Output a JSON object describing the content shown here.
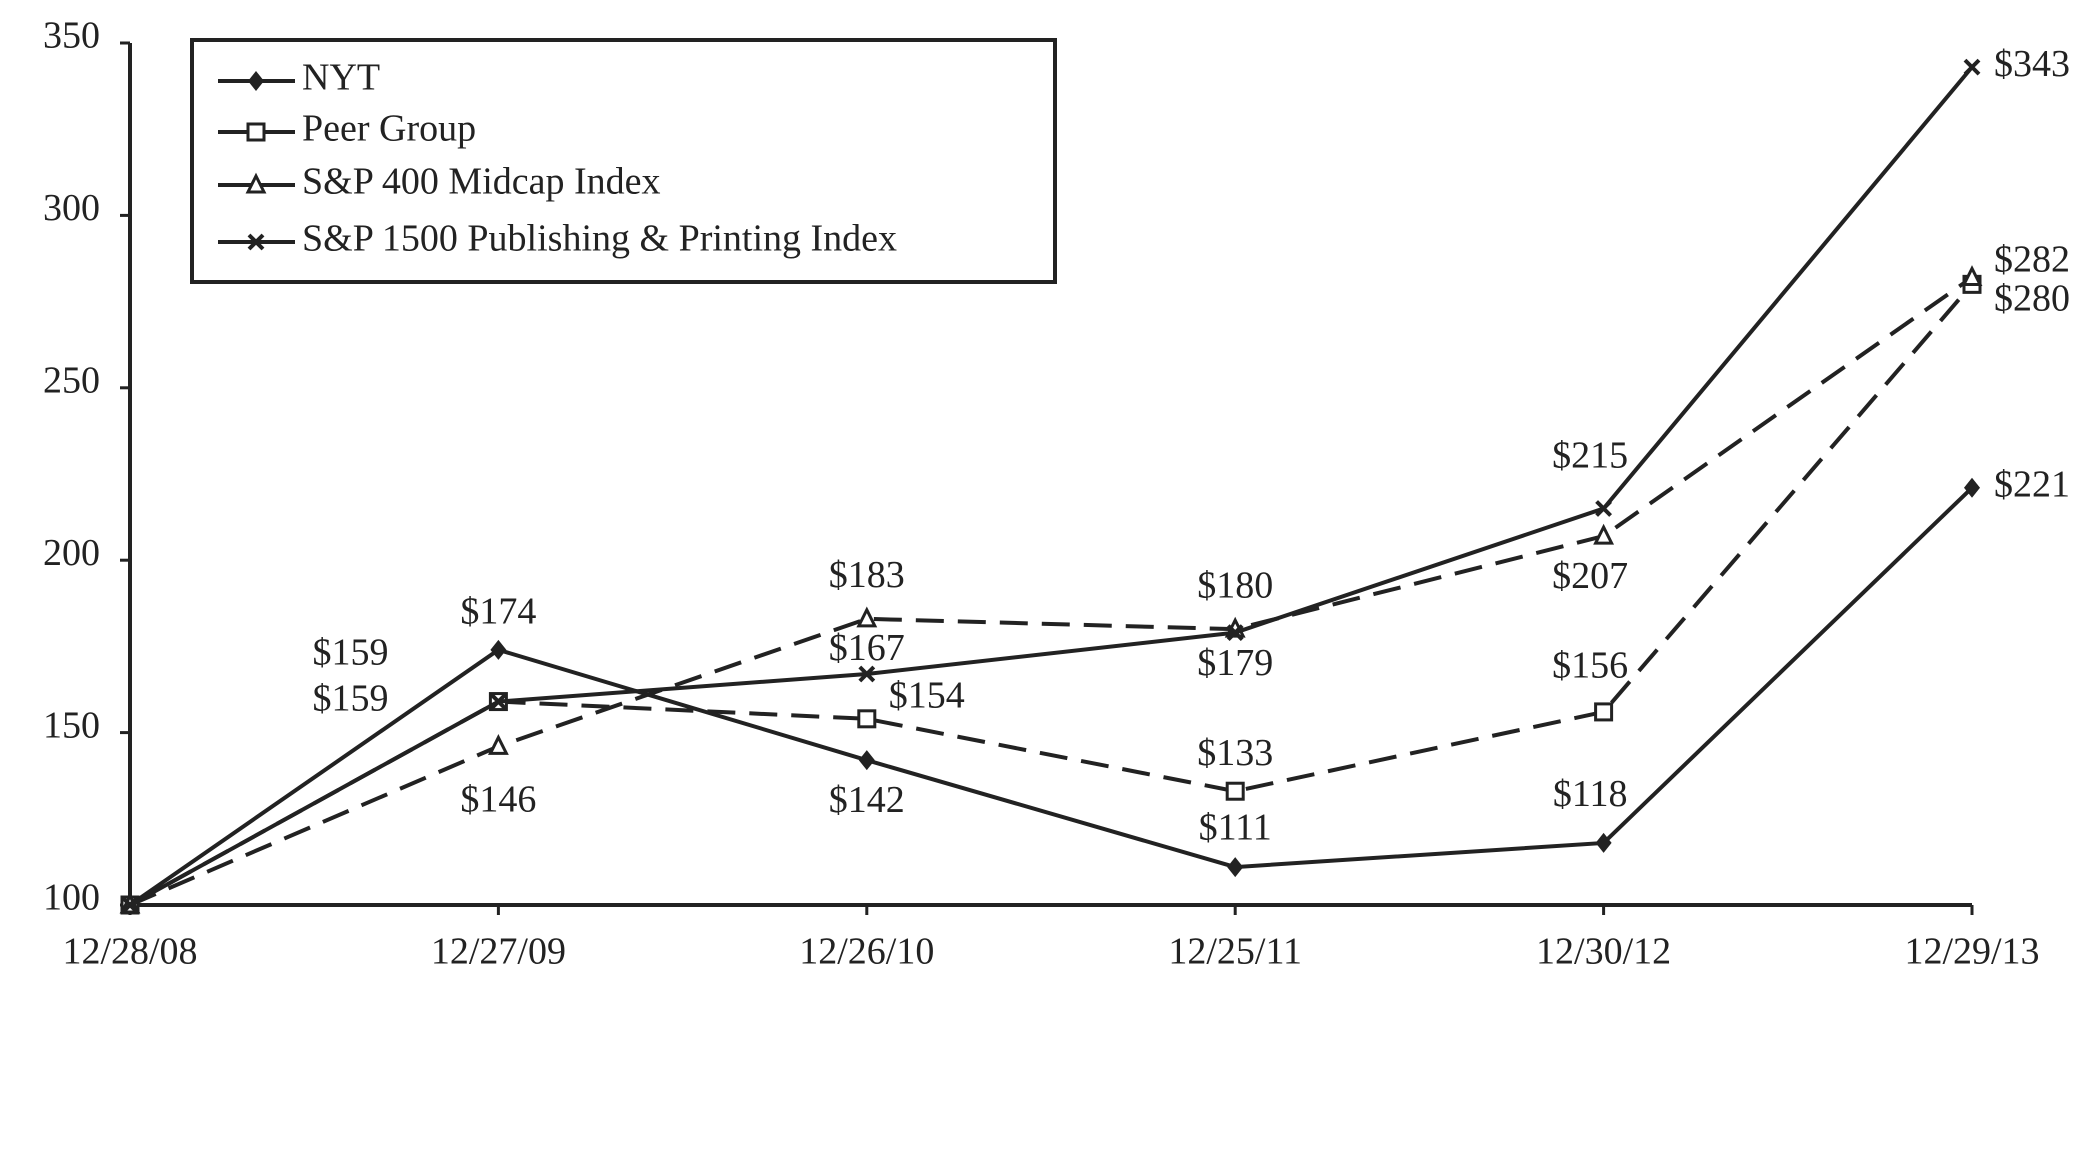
{
  "chart_data": {
    "type": "line",
    "categories": [
      "12/28/08",
      "12/27/09",
      "12/26/10",
      "12/25/11",
      "12/30/12",
      "12/29/13"
    ],
    "ylim": [
      100,
      350
    ],
    "yticks": [
      100,
      150,
      200,
      250,
      300,
      350
    ],
    "legend": "top-left",
    "series": [
      {
        "name": "NYT",
        "color": "#222222",
        "marker": "diamond",
        "line_style": "solid",
        "values": [
          100,
          174,
          142,
          111,
          118,
          221
        ],
        "value_labels": [
          null,
          "$174",
          "$142",
          "$111",
          "$118",
          "$221"
        ]
      },
      {
        "name": "Peer Group",
        "color": "#222222",
        "marker": "square",
        "line_style": "dashed",
        "values": [
          100,
          159,
          154,
          133,
          156,
          280
        ],
        "value_labels": [
          null,
          "$159",
          "$154",
          "$133",
          "$156",
          "$280"
        ]
      },
      {
        "name": "S&P 400 Midcap Index",
        "color": "#222222",
        "marker": "triangle",
        "line_style": "dashed",
        "values": [
          100,
          146,
          183,
          180,
          207,
          282
        ],
        "value_labels": [
          null,
          "$146",
          "$183",
          "$180",
          "$207",
          "$282"
        ]
      },
      {
        "name": "S&P 1500 Publishing & Printing Index",
        "color": "#222222",
        "marker": "x",
        "line_style": "solid",
        "values": [
          100,
          159,
          167,
          179,
          215,
          343
        ],
        "value_labels": [
          null,
          "$159",
          "$167",
          "$179",
          "$215",
          "$343"
        ]
      }
    ]
  }
}
